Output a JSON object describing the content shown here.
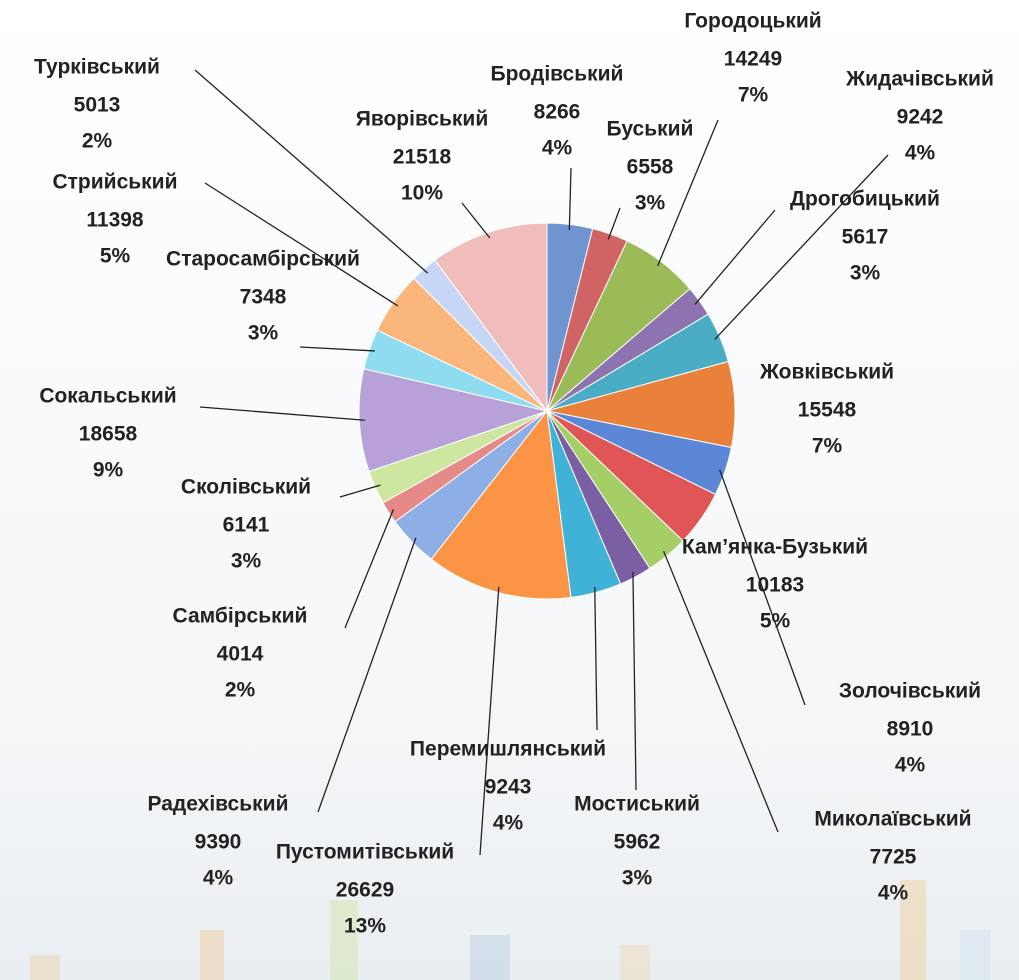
{
  "chart_data": {
    "type": "pie",
    "categories": [
      "Бродівський",
      "Буський",
      "Городоцький",
      "Дрогобицький",
      "Жидачівський",
      "Жовківський",
      "Золочівський",
      "Кам’янка-Бузький",
      "Миколаївський",
      "Мостиський",
      "Перемишлянський",
      "Пустомитівський",
      "Радехівський",
      "Самбірський",
      "Сколівський",
      "Сокальський",
      "Старосамбірський",
      "Стрийський",
      "Турківський",
      "Яворівський"
    ],
    "values": [
      8266,
      6558,
      14249,
      5617,
      9242,
      15548,
      8910,
      10183,
      7725,
      5962,
      9243,
      26629,
      9390,
      4014,
      6141,
      18658,
      7348,
      11398,
      5013,
      21518
    ],
    "percent_labels": [
      "4%",
      "3%",
      "7%",
      "3%",
      "4%",
      "7%",
      "4%",
      "5%",
      "4%",
      "3%",
      "4%",
      "13%",
      "4%",
      "2%",
      "3%",
      "9%",
      "3%",
      "5%",
      "2%",
      "10%"
    ],
    "colors": [
      "#6f94d0",
      "#d06363",
      "#9bbb59",
      "#8d74b0",
      "#4bacc6",
      "#e9813a",
      "#5b87d6",
      "#e05656",
      "#a5cf66",
      "#7b5fa5",
      "#40b2d8",
      "#fb9445",
      "#8eaee6",
      "#e58a88",
      "#cde6a0",
      "#b7a1d8",
      "#8fdcf0",
      "#fbb67c",
      "#c6d6f4",
      "#f0bcbc"
    ]
  }
}
